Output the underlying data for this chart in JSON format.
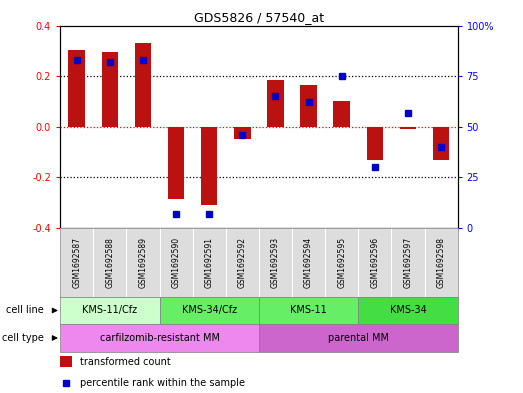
{
  "title": "GDS5826 / 57540_at",
  "samples": [
    "GSM1692587",
    "GSM1692588",
    "GSM1692589",
    "GSM1692590",
    "GSM1692591",
    "GSM1692592",
    "GSM1692593",
    "GSM1692594",
    "GSM1692595",
    "GSM1692596",
    "GSM1692597",
    "GSM1692598"
  ],
  "transformed_count": [
    0.305,
    0.295,
    0.33,
    -0.285,
    -0.31,
    -0.05,
    0.185,
    0.165,
    0.1,
    -0.13,
    -0.01,
    -0.13
  ],
  "percentile_rank": [
    83,
    82,
    83,
    7,
    7,
    46,
    65,
    62,
    75,
    30,
    57,
    40
  ],
  "bar_color": "#bb1111",
  "dot_color": "#0000cc",
  "ylim_left": [
    -0.4,
    0.4
  ],
  "ylim_right": [
    0,
    100
  ],
  "yticks_left": [
    -0.4,
    -0.2,
    0.0,
    0.2,
    0.4
  ],
  "yticks_right": [
    0,
    25,
    50,
    75,
    100
  ],
  "yticklabels_right": [
    "0",
    "25",
    "50",
    "75",
    "100%"
  ],
  "dotted_lines_black": [
    -0.2,
    0.2
  ],
  "dotted_line_red": 0.0,
  "cell_line_groups": [
    {
      "label": "KMS-11/Cfz",
      "start": 0,
      "end": 3,
      "color": "#ccffcc"
    },
    {
      "label": "KMS-34/Cfz",
      "start": 3,
      "end": 6,
      "color": "#66ee66"
    },
    {
      "label": "KMS-11",
      "start": 6,
      "end": 9,
      "color": "#66ee66"
    },
    {
      "label": "KMS-34",
      "start": 9,
      "end": 12,
      "color": "#44dd44"
    }
  ],
  "cell_type_groups": [
    {
      "label": "carfilzomib-resistant MM",
      "start": 0,
      "end": 6,
      "color": "#ee88ee"
    },
    {
      "label": "parental MM",
      "start": 6,
      "end": 12,
      "color": "#cc66cc"
    }
  ],
  "legend_bar_label": "transformed count",
  "legend_dot_label": "percentile rank within the sample",
  "bar_width": 0.5,
  "background_color": "#ffffff",
  "sample_box_color": "#dddddd"
}
